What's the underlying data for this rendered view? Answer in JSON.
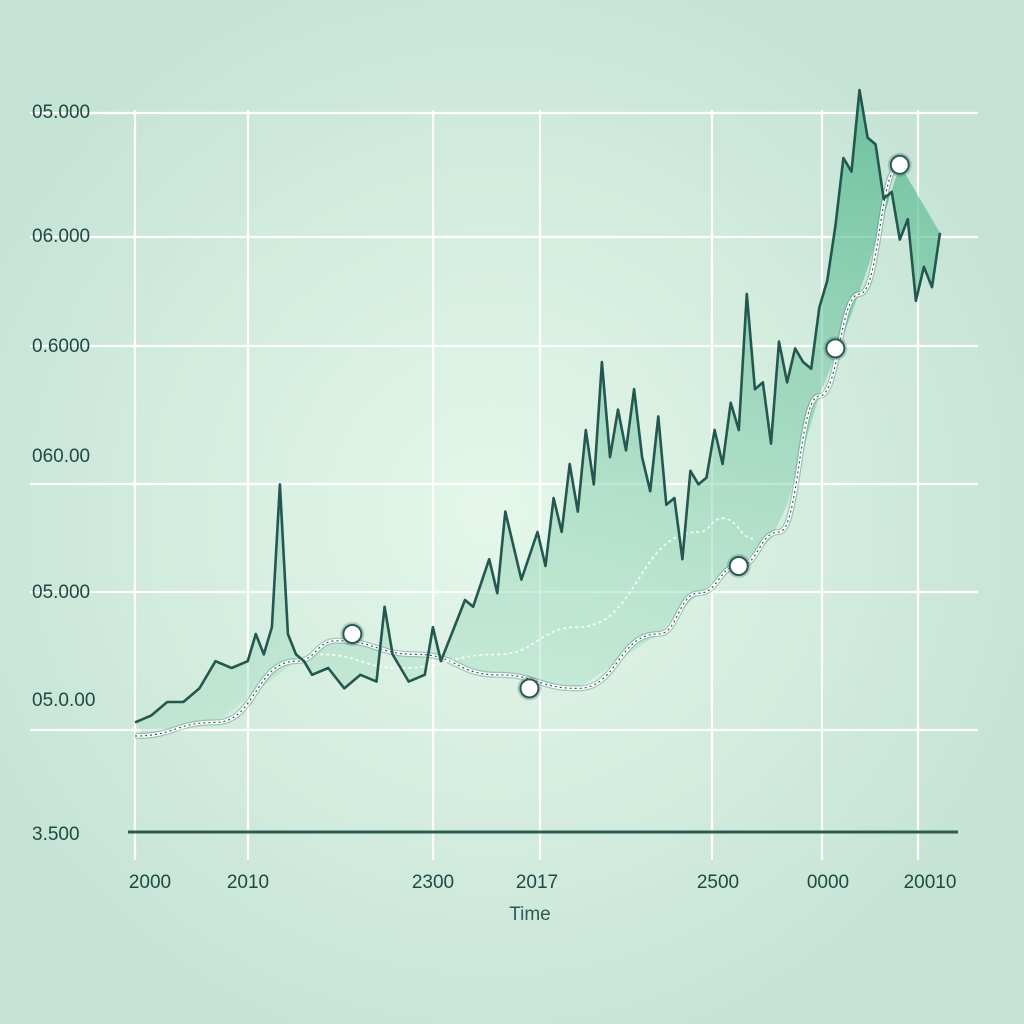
{
  "chart_data": {
    "type": "line",
    "xlabel": "Time",
    "ylabel": "",
    "grid": true,
    "colors": {
      "background": "#cfe8dc",
      "grid": "#ffffff",
      "price_line": "#24574f",
      "area_fill": "#86cfae",
      "trend_line": "#ffffff",
      "axis": "#2d5a55"
    },
    "x_ticks": [
      "2000",
      "2010",
      "2300",
      "2017",
      "2500",
      "0000",
      "20010"
    ],
    "y_ticks": [
      "05.000",
      "06.000",
      "0.6000",
      "060.00",
      "05.000",
      "05.0.00",
      "3.500"
    ],
    "series": [
      {
        "kind": "price",
        "x": [
          0,
          2,
          4,
          6,
          8,
          10,
          12,
          14,
          15,
          16,
          17,
          18,
          19,
          20,
          21,
          22,
          24,
          26,
          28,
          30,
          31,
          32,
          34,
          36,
          37,
          38,
          40,
          41,
          42,
          44,
          45,
          46,
          48,
          50,
          51,
          52,
          53,
          54,
          55,
          56,
          57,
          58,
          59,
          60,
          61,
          62,
          63,
          64,
          65,
          66,
          67,
          68,
          69,
          70,
          71,
          72,
          73,
          74,
          75,
          76,
          77,
          78,
          79,
          80,
          81,
          82,
          83,
          84,
          85,
          86,
          87,
          88,
          89,
          90,
          91,
          92,
          93,
          94,
          95,
          96,
          97,
          98,
          99,
          100
        ],
        "y": [
          0.07,
          0.08,
          0.1,
          0.1,
          0.12,
          0.16,
          0.15,
          0.16,
          0.2,
          0.17,
          0.21,
          0.42,
          0.2,
          0.17,
          0.16,
          0.14,
          0.15,
          0.12,
          0.14,
          0.13,
          0.24,
          0.17,
          0.13,
          0.14,
          0.21,
          0.16,
          0.22,
          0.25,
          0.24,
          0.31,
          0.26,
          0.38,
          0.28,
          0.35,
          0.3,
          0.4,
          0.35,
          0.45,
          0.38,
          0.5,
          0.42,
          0.6,
          0.46,
          0.53,
          0.47,
          0.56,
          0.46,
          0.41,
          0.52,
          0.39,
          0.4,
          0.31,
          0.44,
          0.42,
          0.43,
          0.5,
          0.45,
          0.54,
          0.5,
          0.7,
          0.56,
          0.57,
          0.48,
          0.63,
          0.57,
          0.62,
          0.6,
          0.59,
          0.68,
          0.72,
          0.8,
          0.9,
          0.88,
          1.0,
          0.93,
          0.92,
          0.84,
          0.85,
          0.78,
          0.81,
          0.69,
          0.74,
          0.71,
          0.79
        ]
      },
      {
        "kind": "trend",
        "x": [
          0,
          10,
          20,
          25,
          35,
          45,
          55,
          65,
          70,
          75,
          80,
          85,
          90,
          95
        ],
        "y": [
          0.05,
          0.07,
          0.16,
          0.19,
          0.17,
          0.14,
          0.12,
          0.2,
          0.26,
          0.3,
          0.35,
          0.55,
          0.7,
          0.89
        ]
      },
      {
        "kind": "trend-secondary",
        "x": [
          23,
          33,
          45,
          55,
          70,
          73,
          77
        ],
        "y": [
          0.17,
          0.15,
          0.17,
          0.21,
          0.35,
          0.37,
          0.34
        ]
      }
    ],
    "markers": [
      {
        "x": 27,
        "y": 0.2
      },
      {
        "x": 49,
        "y": 0.12
      },
      {
        "x": 75,
        "y": 0.3
      },
      {
        "x": 87,
        "y": 0.62
      },
      {
        "x": 95,
        "y": 0.89
      }
    ]
  }
}
